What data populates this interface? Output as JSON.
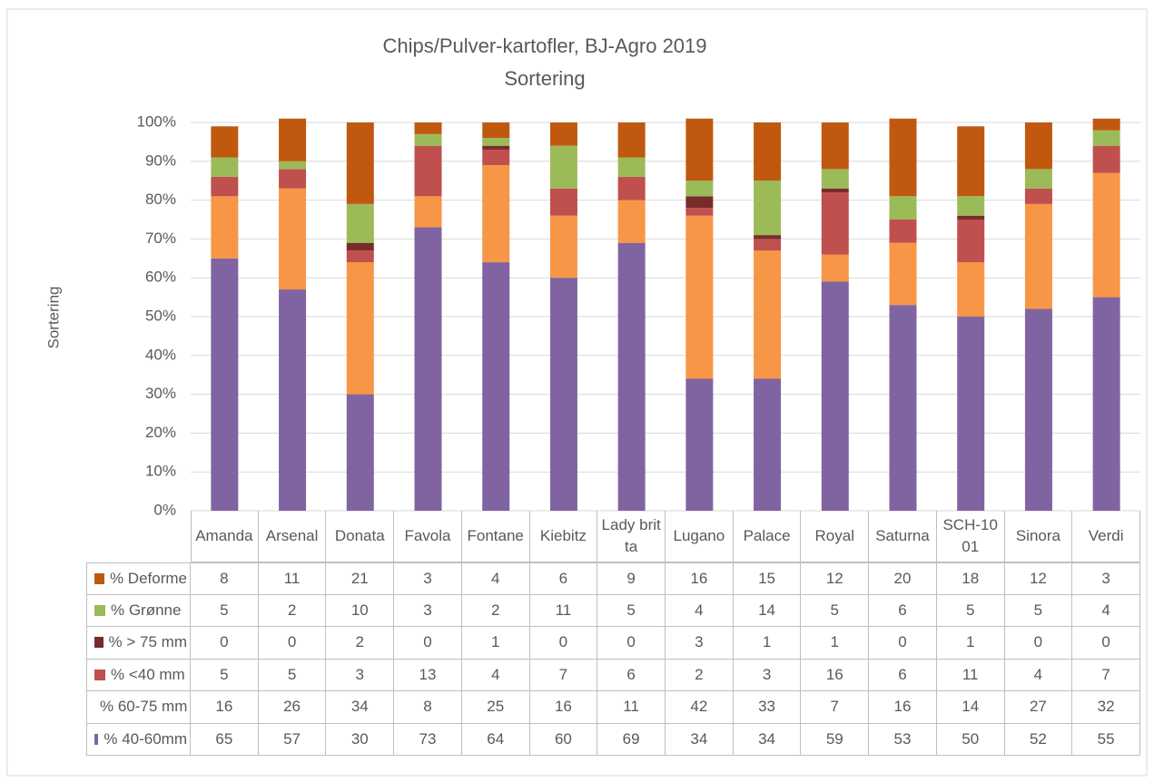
{
  "chart_data": {
    "type": "bar",
    "stacked": true,
    "title": "Chips/Pulver-kartofler, BJ-Agro 2019",
    "subtitle": "Sortering",
    "y_label": "Sortering",
    "categories": [
      "Amanda",
      "Arsenal",
      "Donata",
      "Favola",
      "Fontane",
      "Kiebitz",
      "Lady britta",
      "Lugano",
      "Palace",
      "Royal",
      "Saturna",
      "SCH-1001",
      "Sinora",
      "Verdi"
    ],
    "series": [
      {
        "name": "% 40-60mm",
        "color": "#8064a2",
        "values": [
          65,
          57,
          30,
          73,
          64,
          60,
          69,
          34,
          34,
          59,
          53,
          50,
          52,
          55
        ]
      },
      {
        "name": "% 60-75 mm",
        "color": "#f79646",
        "values": [
          16,
          26,
          34,
          8,
          25,
          16,
          11,
          42,
          33,
          7,
          16,
          14,
          27,
          32
        ]
      },
      {
        "name": "% <40 mm",
        "color": "#c0504d",
        "values": [
          5,
          5,
          3,
          13,
          4,
          7,
          6,
          2,
          3,
          16,
          6,
          11,
          4,
          7
        ]
      },
      {
        "name": "% > 75 mm",
        "color": "#772c2a",
        "values": [
          0,
          0,
          2,
          0,
          1,
          0,
          0,
          3,
          1,
          1,
          0,
          1,
          0,
          0
        ]
      },
      {
        "name": "% Grønne",
        "color": "#9bbb59",
        "values": [
          5,
          2,
          10,
          3,
          2,
          11,
          5,
          4,
          14,
          5,
          6,
          5,
          5,
          4
        ]
      },
      {
        "name": "% Deforme",
        "color": "#c0590f",
        "values": [
          8,
          11,
          21,
          3,
          4,
          6,
          9,
          16,
          15,
          12,
          20,
          18,
          12,
          3
        ]
      }
    ],
    "ylim": [
      0,
      100
    ],
    "yticks": [
      {
        "value": 0,
        "label": "0%"
      },
      {
        "value": 10,
        "label": "10%"
      },
      {
        "value": 20,
        "label": "20%"
      },
      {
        "value": 30,
        "label": "30%"
      },
      {
        "value": 40,
        "label": "40%"
      },
      {
        "value": 50,
        "label": "50%"
      },
      {
        "value": 60,
        "label": "60%"
      },
      {
        "value": 70,
        "label": "70%"
      },
      {
        "value": 80,
        "label": "80%"
      },
      {
        "value": 90,
        "label": "90%"
      },
      {
        "value": 100,
        "label": "100%"
      }
    ],
    "grid": true
  }
}
